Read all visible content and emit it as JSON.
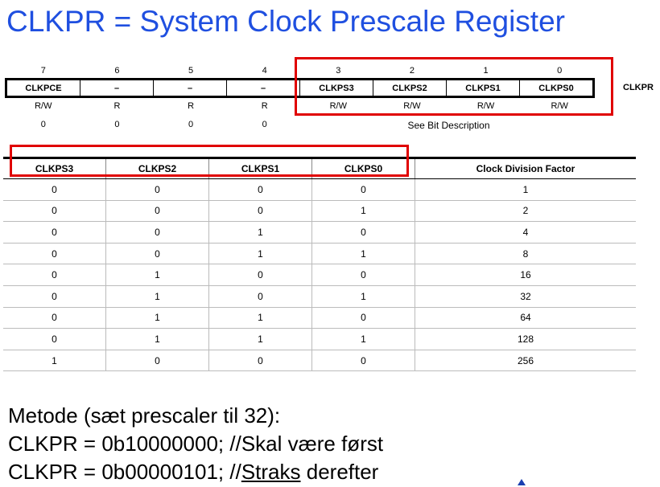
{
  "title": "CLKPR = System Clock Prescale Register",
  "register": {
    "name": "CLKPR",
    "bit_numbers": [
      "7",
      "6",
      "5",
      "4",
      "3",
      "2",
      "1",
      "0"
    ],
    "bit_names": [
      "CLKPCE",
      "–",
      "–",
      "–",
      "CLKPS3",
      "CLKPS2",
      "CLKPS1",
      "CLKPS0"
    ],
    "access": [
      "R/W",
      "R",
      "R",
      "R",
      "R/W",
      "R/W",
      "R/W",
      "R/W"
    ],
    "initial": [
      "0",
      "0",
      "0",
      "0"
    ],
    "see_bit_description": "See Bit Description"
  },
  "table": {
    "headers": [
      "CLKPS3",
      "CLKPS2",
      "CLKPS1",
      "CLKPS0",
      "Clock Division Factor"
    ],
    "rows": [
      [
        "0",
        "0",
        "0",
        "0",
        "1"
      ],
      [
        "0",
        "0",
        "0",
        "1",
        "2"
      ],
      [
        "0",
        "0",
        "1",
        "0",
        "4"
      ],
      [
        "0",
        "0",
        "1",
        "1",
        "8"
      ],
      [
        "0",
        "1",
        "0",
        "0",
        "16"
      ],
      [
        "0",
        "1",
        "0",
        "1",
        "32"
      ],
      [
        "0",
        "1",
        "1",
        "0",
        "64"
      ],
      [
        "0",
        "1",
        "1",
        "1",
        "128"
      ],
      [
        "1",
        "0",
        "0",
        "0",
        "256"
      ]
    ]
  },
  "method": {
    "line1": "Metode (sæt prescaler til 32):",
    "line2": "CLKPR = 0b10000000;  //Skal være først",
    "line3_prefix": "CLKPR = 0b00000101;  //",
    "line3_underlined": "Straks",
    "line3_suffix": " derefter"
  },
  "colors": {
    "title": "#1f4fe0",
    "highlight": "#e00000"
  }
}
